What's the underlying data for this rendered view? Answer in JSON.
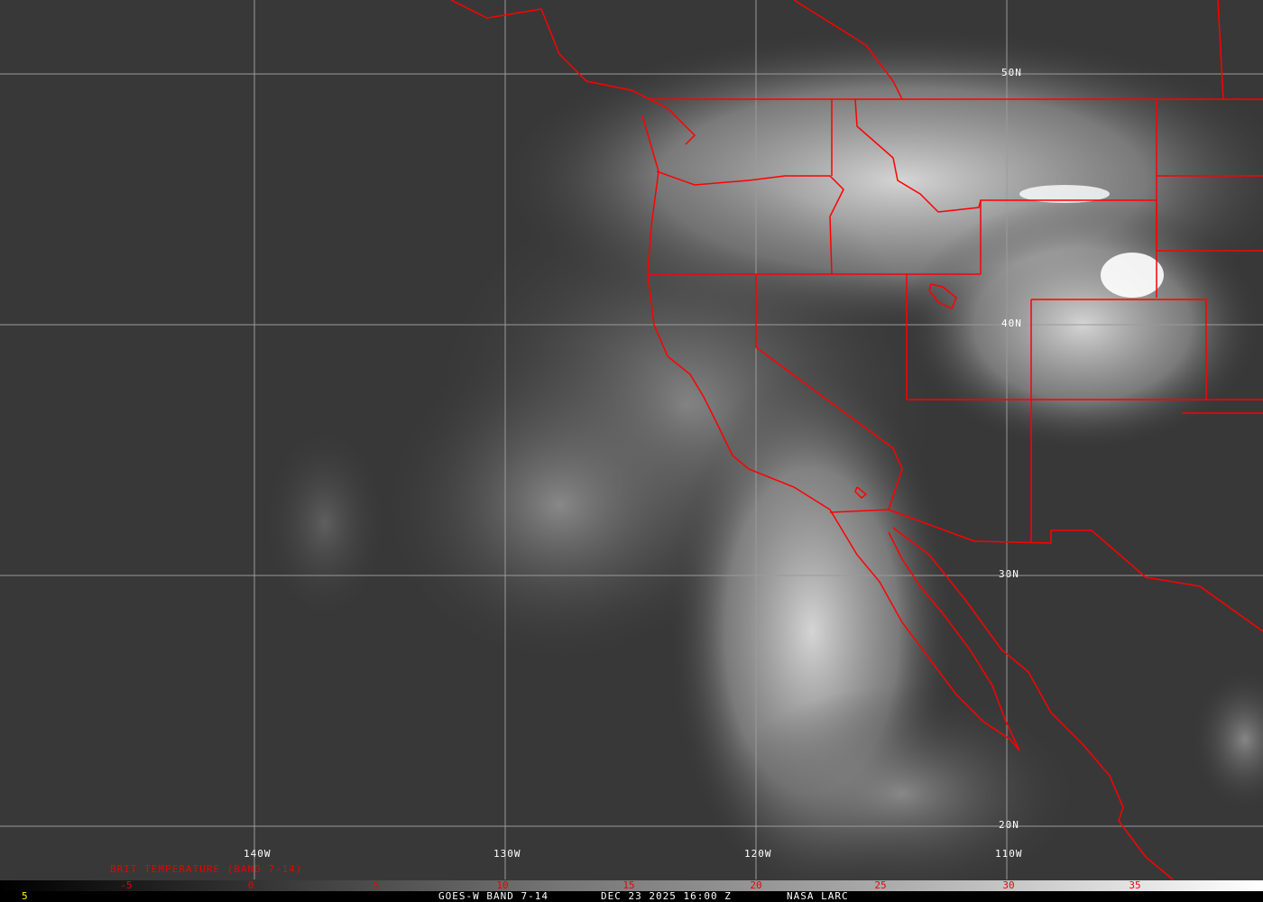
{
  "satellite_image": {
    "lat_labels": [
      "50N",
      "40N",
      "30N",
      "20N"
    ],
    "lon_labels": [
      "140W",
      "130W",
      "120W",
      "110W"
    ],
    "boundary_color": "#ff0000",
    "grid_color": "#9a9a9a"
  },
  "colorbar": {
    "title": "BRIT TEMPERATURE (BAND 7-14)",
    "ticks": [
      "-5",
      "0",
      "5",
      "10",
      "15",
      "20",
      "25",
      "30",
      "35"
    ],
    "tick_color": "#ff0000"
  },
  "footer": {
    "left_value": "5",
    "caption": "GOES-W BAND 7-14",
    "datetime": "DEC 23 2025 16:00 Z",
    "credit": "NASA LARC"
  }
}
